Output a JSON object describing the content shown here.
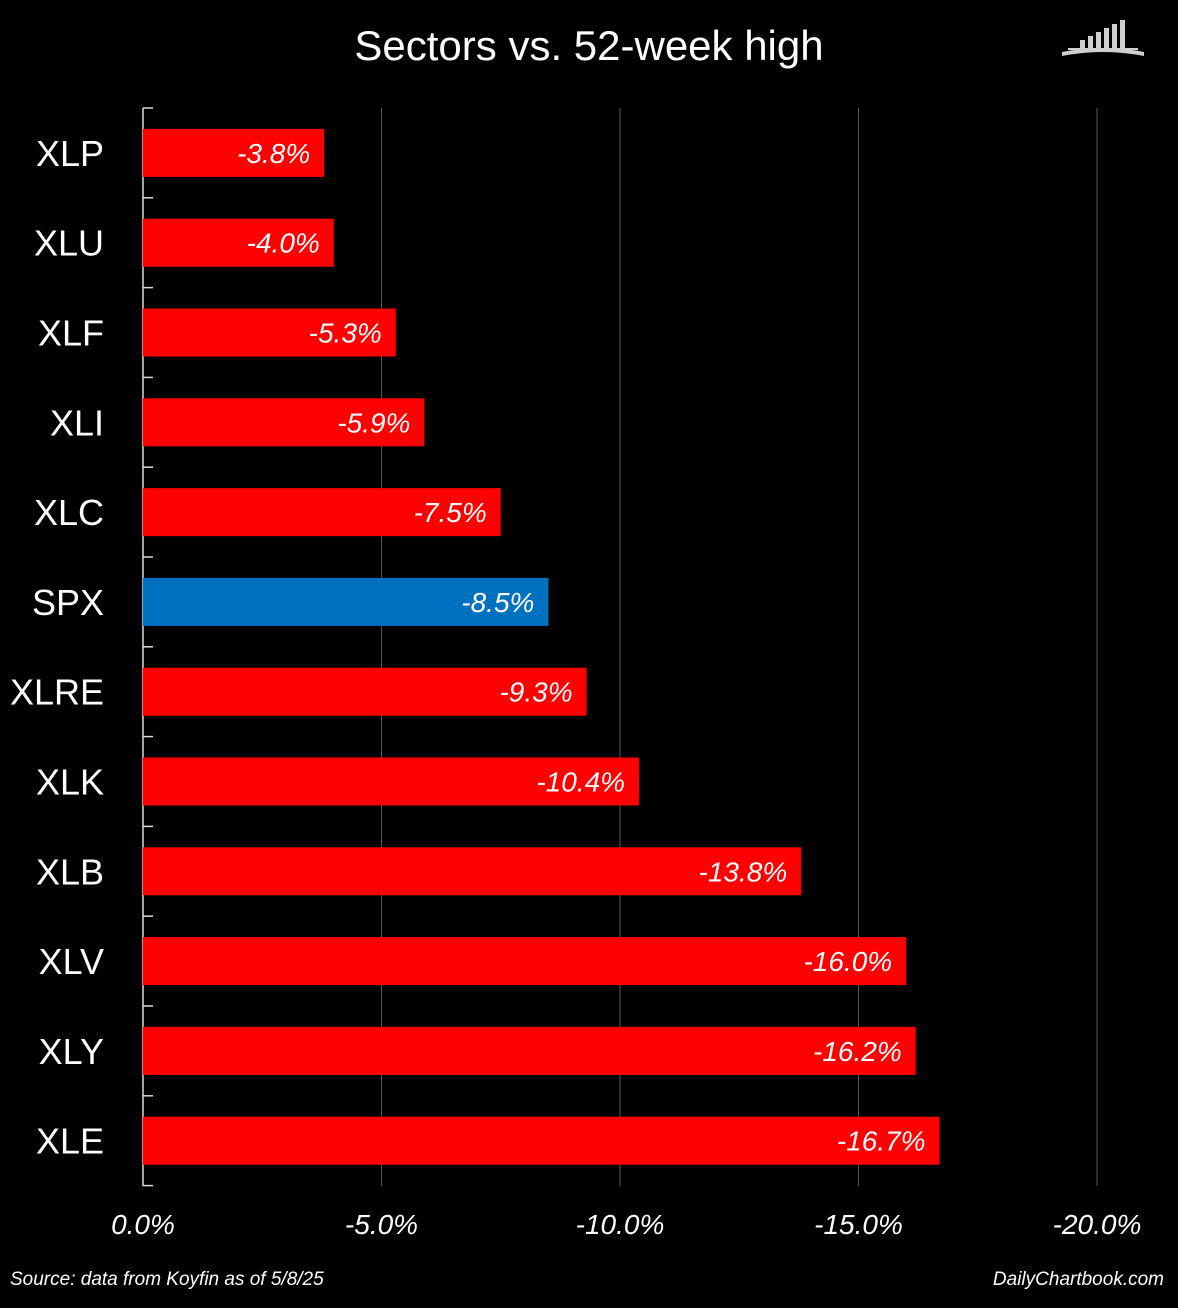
{
  "title": "Sectors vs. 52-week high",
  "source": "Source: data from Koyfin as of 5/8/25",
  "site": "DailyChartbook.com",
  "logo_icon": "bar-chart-book-icon",
  "colors": {
    "background": "#000000",
    "negative_bar": "#ff0000",
    "benchmark_bar": "#0070c0",
    "gridline": "#595959",
    "text": "#ffffff"
  },
  "chart_data": {
    "type": "bar",
    "orientation": "horizontal",
    "title": "Sectors vs. 52-week high",
    "categories": [
      "XLP",
      "XLU",
      "XLF",
      "XLI",
      "XLC",
      "SPX",
      "XLRE",
      "XLK",
      "XLB",
      "XLV",
      "XLY",
      "XLE"
    ],
    "values": [
      -3.8,
      -4.0,
      -5.3,
      -5.9,
      -7.5,
      -8.5,
      -9.3,
      -10.4,
      -13.8,
      -16.0,
      -16.2,
      -16.7
    ],
    "data_labels": [
      "-3.8%",
      "-4.0%",
      "-5.3%",
      "-5.9%",
      "-7.5%",
      "-8.5%",
      "-9.3%",
      "-10.4%",
      "-13.8%",
      "-16.0%",
      "-16.2%",
      "-16.7%"
    ],
    "highlight": "SPX",
    "xlim": [
      0,
      -20
    ],
    "x_ticks": [
      0,
      -5,
      -10,
      -15,
      -20
    ],
    "x_tick_labels": [
      "0.0%",
      "-5.0%",
      "-10.0%",
      "-15.0%",
      "-20.0%"
    ],
    "xlabel": "",
    "ylabel": "",
    "grid": true,
    "legend": "none"
  }
}
